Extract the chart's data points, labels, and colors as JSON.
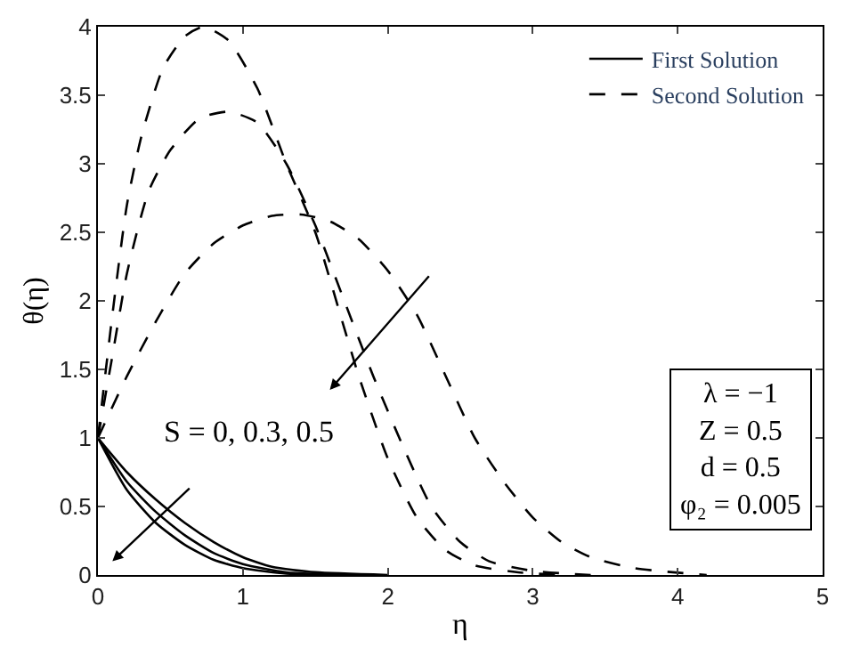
{
  "chart_data": {
    "type": "line",
    "xlabel": "η",
    "ylabel": "θ(η)",
    "xlim": [
      0,
      5
    ],
    "xticks": [
      0,
      1,
      2,
      3,
      4,
      5
    ],
    "ylim": [
      0,
      4
    ],
    "yticks": [
      0,
      0.5,
      1,
      1.5,
      2,
      2.5,
      3,
      3.5,
      4
    ],
    "legend": "top right",
    "marker": "none",
    "series": [
      {
        "name": "First Solution",
        "color": "#000000",
        "line_style": "solid",
        "x": [
          0,
          0.2,
          0.4,
          0.6,
          0.8,
          1.0,
          1.2,
          1.5,
          2.0
        ],
        "values": [
          1,
          0.75,
          0.55,
          0.38,
          0.24,
          0.13,
          0.06,
          0.02,
          0
        ]
      },
      {
        "color": "#000000",
        "line_style": "solid",
        "x": [
          0,
          0.2,
          0.4,
          0.6,
          0.8,
          1.0,
          1.3,
          1.8
        ],
        "values": [
          1,
          0.68,
          0.46,
          0.29,
          0.16,
          0.08,
          0.02,
          0
        ]
      },
      {
        "color": "#000000",
        "line_style": "solid",
        "x": [
          0,
          0.2,
          0.4,
          0.6,
          0.8,
          1.0,
          1.3,
          1.7
        ],
        "values": [
          1,
          0.62,
          0.38,
          0.22,
          0.11,
          0.05,
          0.01,
          0
        ]
      },
      {
        "name": "Second Solution",
        "color": "#000000",
        "line_style": "dashed",
        "x": [
          0,
          0.1,
          0.2,
          0.3,
          0.45,
          0.6,
          0.73,
          0.9,
          1.1,
          1.3,
          1.5,
          1.7,
          1.8,
          2.0,
          2.2,
          2.4,
          2.6,
          2.9,
          3.2
        ],
        "values": [
          1,
          1.9,
          2.7,
          3.2,
          3.7,
          3.93,
          4.0,
          3.9,
          3.55,
          3.0,
          2.5,
          1.8,
          1.45,
          0.85,
          0.42,
          0.18,
          0.07,
          0.02,
          0
        ]
      },
      {
        "color": "#000000",
        "line_style": "dashed",
        "x": [
          0,
          0.1,
          0.2,
          0.35,
          0.5,
          0.7,
          0.9,
          1.1,
          1.3,
          1.5,
          1.7,
          1.9,
          2.1,
          2.3,
          2.5,
          2.7,
          3.0,
          3.4
        ],
        "values": [
          1,
          1.6,
          2.2,
          2.8,
          3.1,
          3.33,
          3.38,
          3.3,
          3.0,
          2.55,
          2.0,
          1.45,
          0.95,
          0.5,
          0.24,
          0.1,
          0.03,
          0
        ]
      },
      {
        "color": "#000000",
        "line_style": "dashed",
        "x": [
          0,
          0.2,
          0.4,
          0.6,
          0.8,
          1.0,
          1.2,
          1.4,
          1.6,
          1.8,
          2.0,
          2.2,
          2.4,
          2.6,
          2.8,
          3.0,
          3.2,
          3.4,
          3.7,
          4.2
        ],
        "values": [
          1,
          1.45,
          1.85,
          2.2,
          2.42,
          2.55,
          2.62,
          2.63,
          2.58,
          2.45,
          2.22,
          1.9,
          1.45,
          1.0,
          0.68,
          0.42,
          0.24,
          0.13,
          0.05,
          0
        ]
      }
    ],
    "annotations": [
      "S = 0, 0.3, 0.5",
      "λ = −1",
      "Z = 0.5",
      "d = 0.5",
      "φ₂ = 0.005"
    ]
  }
}
